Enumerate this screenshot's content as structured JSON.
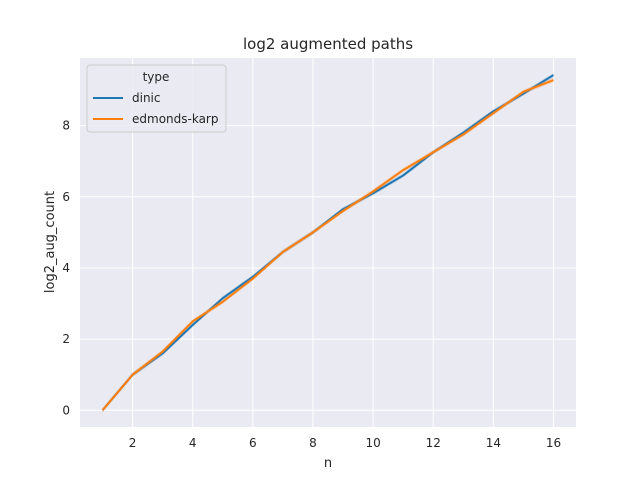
{
  "chart_data": {
    "type": "line",
    "title": "log2 augmented paths",
    "xlabel": "n",
    "ylabel": "log2_aug_count",
    "xlim": [
      0.25,
      16.75
    ],
    "ylim": [
      -0.47,
      9.9
    ],
    "xticks": [
      2,
      4,
      6,
      8,
      10,
      12,
      14,
      16
    ],
    "yticks": [
      0,
      2,
      4,
      6,
      8
    ],
    "grid": true,
    "legend": {
      "title": "type",
      "placement": "top-left"
    },
    "colors": {
      "background": "#eaeaf2",
      "grid": "#ffffff",
      "dinic": "#1f77b4",
      "edmonds-karp": "#ff7f0e"
    },
    "x": [
      1,
      2,
      3,
      4,
      5,
      6,
      7,
      8,
      9,
      10,
      11,
      12,
      13,
      14,
      15,
      16
    ],
    "series": [
      {
        "name": "dinic",
        "values": [
          0,
          1.0,
          1.6,
          2.4,
          3.15,
          3.75,
          4.45,
          5.0,
          5.65,
          6.1,
          6.6,
          7.25,
          7.8,
          8.4,
          8.9,
          9.42
        ]
      },
      {
        "name": "edmonds-karp",
        "values": [
          0,
          1.0,
          1.65,
          2.5,
          3.05,
          3.7,
          4.45,
          5.0,
          5.6,
          6.15,
          6.75,
          7.25,
          7.75,
          8.35,
          8.95,
          9.28
        ]
      }
    ]
  }
}
